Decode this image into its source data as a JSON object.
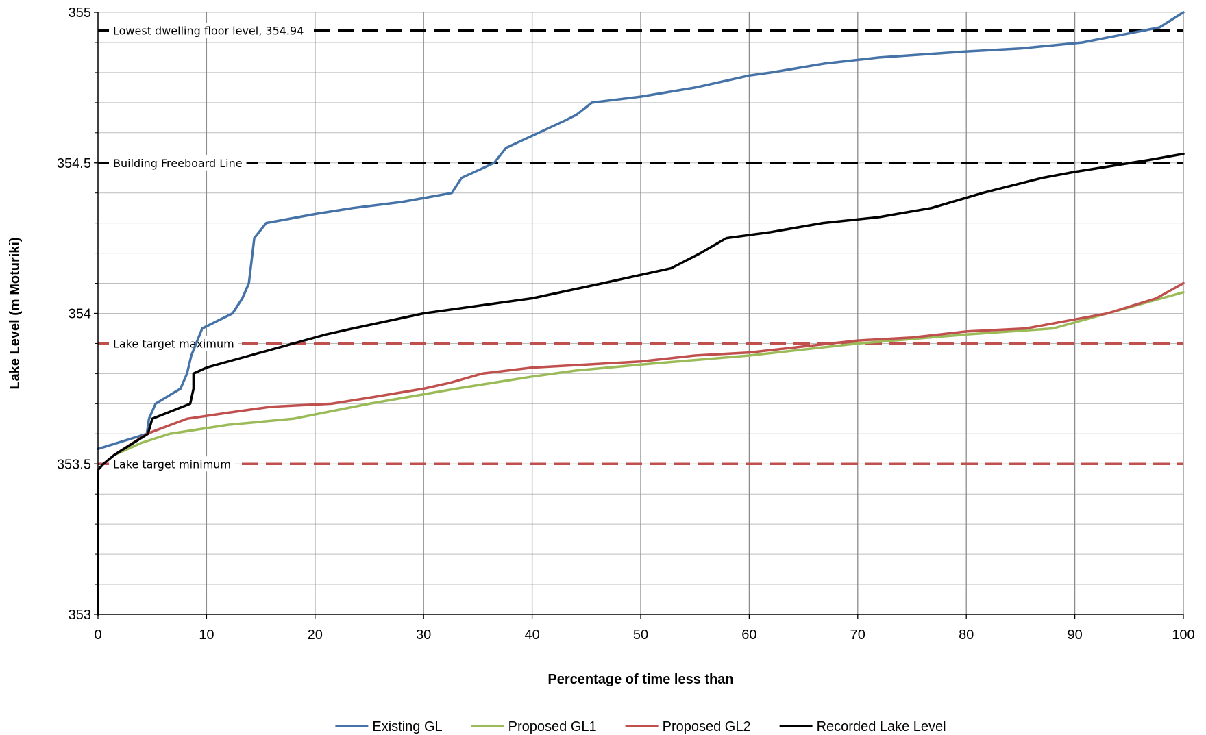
{
  "chart_data": {
    "type": "line",
    "title": "",
    "xlabel": "Percentage of time less than",
    "ylabel": "Lake Level (m Moturiki)",
    "xlim": [
      0,
      100
    ],
    "ylim": [
      353,
      355
    ],
    "xticks": [
      0,
      10,
      20,
      30,
      40,
      50,
      60,
      70,
      80,
      90,
      100
    ],
    "yticks": [
      353,
      353.5,
      354,
      354.5,
      355
    ],
    "ytick_labels": [
      "353",
      "353.5",
      "354",
      "354.5",
      "355"
    ],
    "grid": true,
    "legend_position": "bottom",
    "series": [
      {
        "name": "Existing GL",
        "color": "#4572A7",
        "x": [
          0,
          4.5,
          4.7,
          5.3,
          7.6,
          8.2,
          8.6,
          9.6,
          12.4,
          13.3,
          13.9,
          14.4,
          15.5,
          20,
          23.5,
          28,
          32.6,
          33.5,
          36.5,
          37.6,
          40,
          43,
          44.1,
          45.5,
          50,
          55,
          60,
          62,
          67,
          72,
          80,
          85,
          90.7,
          97.8,
          100
        ],
        "y": [
          353.55,
          353.6,
          353.65,
          353.7,
          353.75,
          353.8,
          353.86,
          353.95,
          354.0,
          354.05,
          354.1,
          354.25,
          354.3,
          354.33,
          354.35,
          354.37,
          354.4,
          354.45,
          354.5,
          354.55,
          354.59,
          354.64,
          354.66,
          354.7,
          354.72,
          354.75,
          354.79,
          354.8,
          354.83,
          354.85,
          354.87,
          354.88,
          354.9,
          354.95,
          355.0
        ]
      },
      {
        "name": "Proposed GL1",
        "color": "#9BBB59",
        "x": [
          1.5,
          4,
          6.6,
          12,
          18,
          25,
          33,
          40,
          44,
          50,
          60,
          70,
          80,
          88,
          90,
          93,
          98,
          100
        ],
        "y": [
          353.53,
          353.57,
          353.6,
          353.63,
          353.65,
          353.7,
          353.75,
          353.79,
          353.81,
          353.83,
          353.86,
          353.9,
          353.93,
          353.95,
          353.97,
          354.0,
          354.05,
          354.07
        ]
      },
      {
        "name": "Proposed GL2",
        "color": "#C0504D",
        "x": [
          1.5,
          4.5,
          8.2,
          12,
          16,
          21.5,
          25,
          30,
          32.5,
          35.4,
          40,
          45,
          50,
          55,
          60,
          65,
          70,
          75,
          80,
          85.5,
          90,
          93,
          97.5,
          100
        ],
        "y": [
          353.53,
          353.6,
          353.65,
          353.67,
          353.69,
          353.7,
          353.72,
          353.75,
          353.77,
          353.8,
          353.82,
          353.83,
          353.84,
          353.86,
          353.87,
          353.89,
          353.91,
          353.92,
          353.94,
          353.95,
          353.98,
          354.0,
          354.05,
          354.1
        ]
      },
      {
        "name": "Recorded Lake Level",
        "color": "#000000",
        "x": [
          0,
          0,
          0.5,
          1.5,
          4.6,
          5,
          8.5,
          8.8,
          8.8,
          10,
          14,
          18,
          21,
          23.5,
          30,
          40,
          46.5,
          52.8,
          55.5,
          57.9,
          62,
          66.8,
          72,
          76.8,
          81.5,
          87,
          90,
          96.9,
          100
        ],
        "y": [
          353.0,
          353.48,
          353.5,
          353.53,
          353.6,
          353.65,
          353.7,
          353.75,
          353.8,
          353.82,
          353.86,
          353.9,
          353.93,
          353.95,
          354.0,
          354.05,
          354.1,
          354.15,
          354.2,
          354.25,
          354.27,
          354.3,
          354.32,
          354.35,
          354.4,
          354.45,
          354.47,
          354.51,
          354.53
        ]
      }
    ],
    "reference_lines": [
      {
        "label": "Lowest dwelling floor level, 354.94",
        "y": 354.94,
        "color": "#000000",
        "style": "dashed"
      },
      {
        "label": "Building Freeboard Line",
        "y": 354.5,
        "color": "#000000",
        "style": "dashed"
      },
      {
        "label": "Lake target maximum",
        "y": 353.9,
        "color": "#C0504D",
        "style": "dashed"
      },
      {
        "label": "Lake target minimum",
        "y": 353.5,
        "color": "#C0504D",
        "style": "dashed"
      }
    ]
  }
}
